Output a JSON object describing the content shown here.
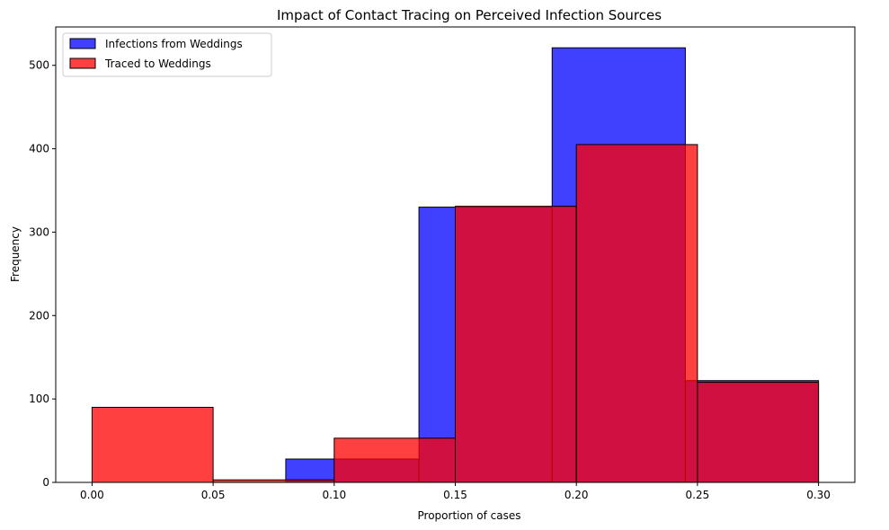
{
  "chart_data": {
    "type": "bar",
    "subtype": "overlaid-histogram",
    "title": "Impact of Contact Tracing on Perceived Infection Sources",
    "xlabel": "Proportion of cases",
    "ylabel": "Frequency",
    "xlim": [
      -0.015,
      0.315
    ],
    "ylim": [
      0,
      546
    ],
    "xticks": [
      0.0,
      0.05,
      0.1,
      0.15,
      0.2,
      0.25,
      0.3
    ],
    "xtick_labels": [
      "0.00",
      "0.05",
      "0.10",
      "0.15",
      "0.20",
      "0.25",
      "0.30"
    ],
    "yticks": [
      0,
      100,
      200,
      300,
      400,
      500
    ],
    "ytick_labels": [
      "0",
      "100",
      "200",
      "300",
      "400",
      "500"
    ],
    "grid": false,
    "legend": {
      "placement": "top-left"
    },
    "series": [
      {
        "name": "Infections from Weddings",
        "color": "#0000ff",
        "bins": [
          {
            "x0": 0.08,
            "x1": 0.135,
            "count": 28
          },
          {
            "x0": 0.135,
            "x1": 0.19,
            "count": 330
          },
          {
            "x0": 0.19,
            "x1": 0.245,
            "count": 521
          },
          {
            "x0": 0.245,
            "x1": 0.3,
            "count": 122
          }
        ]
      },
      {
        "name": "Traced to Weddings",
        "color": "#ff0000",
        "bins": [
          {
            "x0": 0.0,
            "x1": 0.05,
            "count": 90
          },
          {
            "x0": 0.05,
            "x1": 0.1,
            "count": 3
          },
          {
            "x0": 0.1,
            "x1": 0.15,
            "count": 53
          },
          {
            "x0": 0.15,
            "x1": 0.2,
            "count": 331
          },
          {
            "x0": 0.2,
            "x1": 0.25,
            "count": 405
          },
          {
            "x0": 0.25,
            "x1": 0.3,
            "count": 120
          }
        ]
      }
    ]
  }
}
